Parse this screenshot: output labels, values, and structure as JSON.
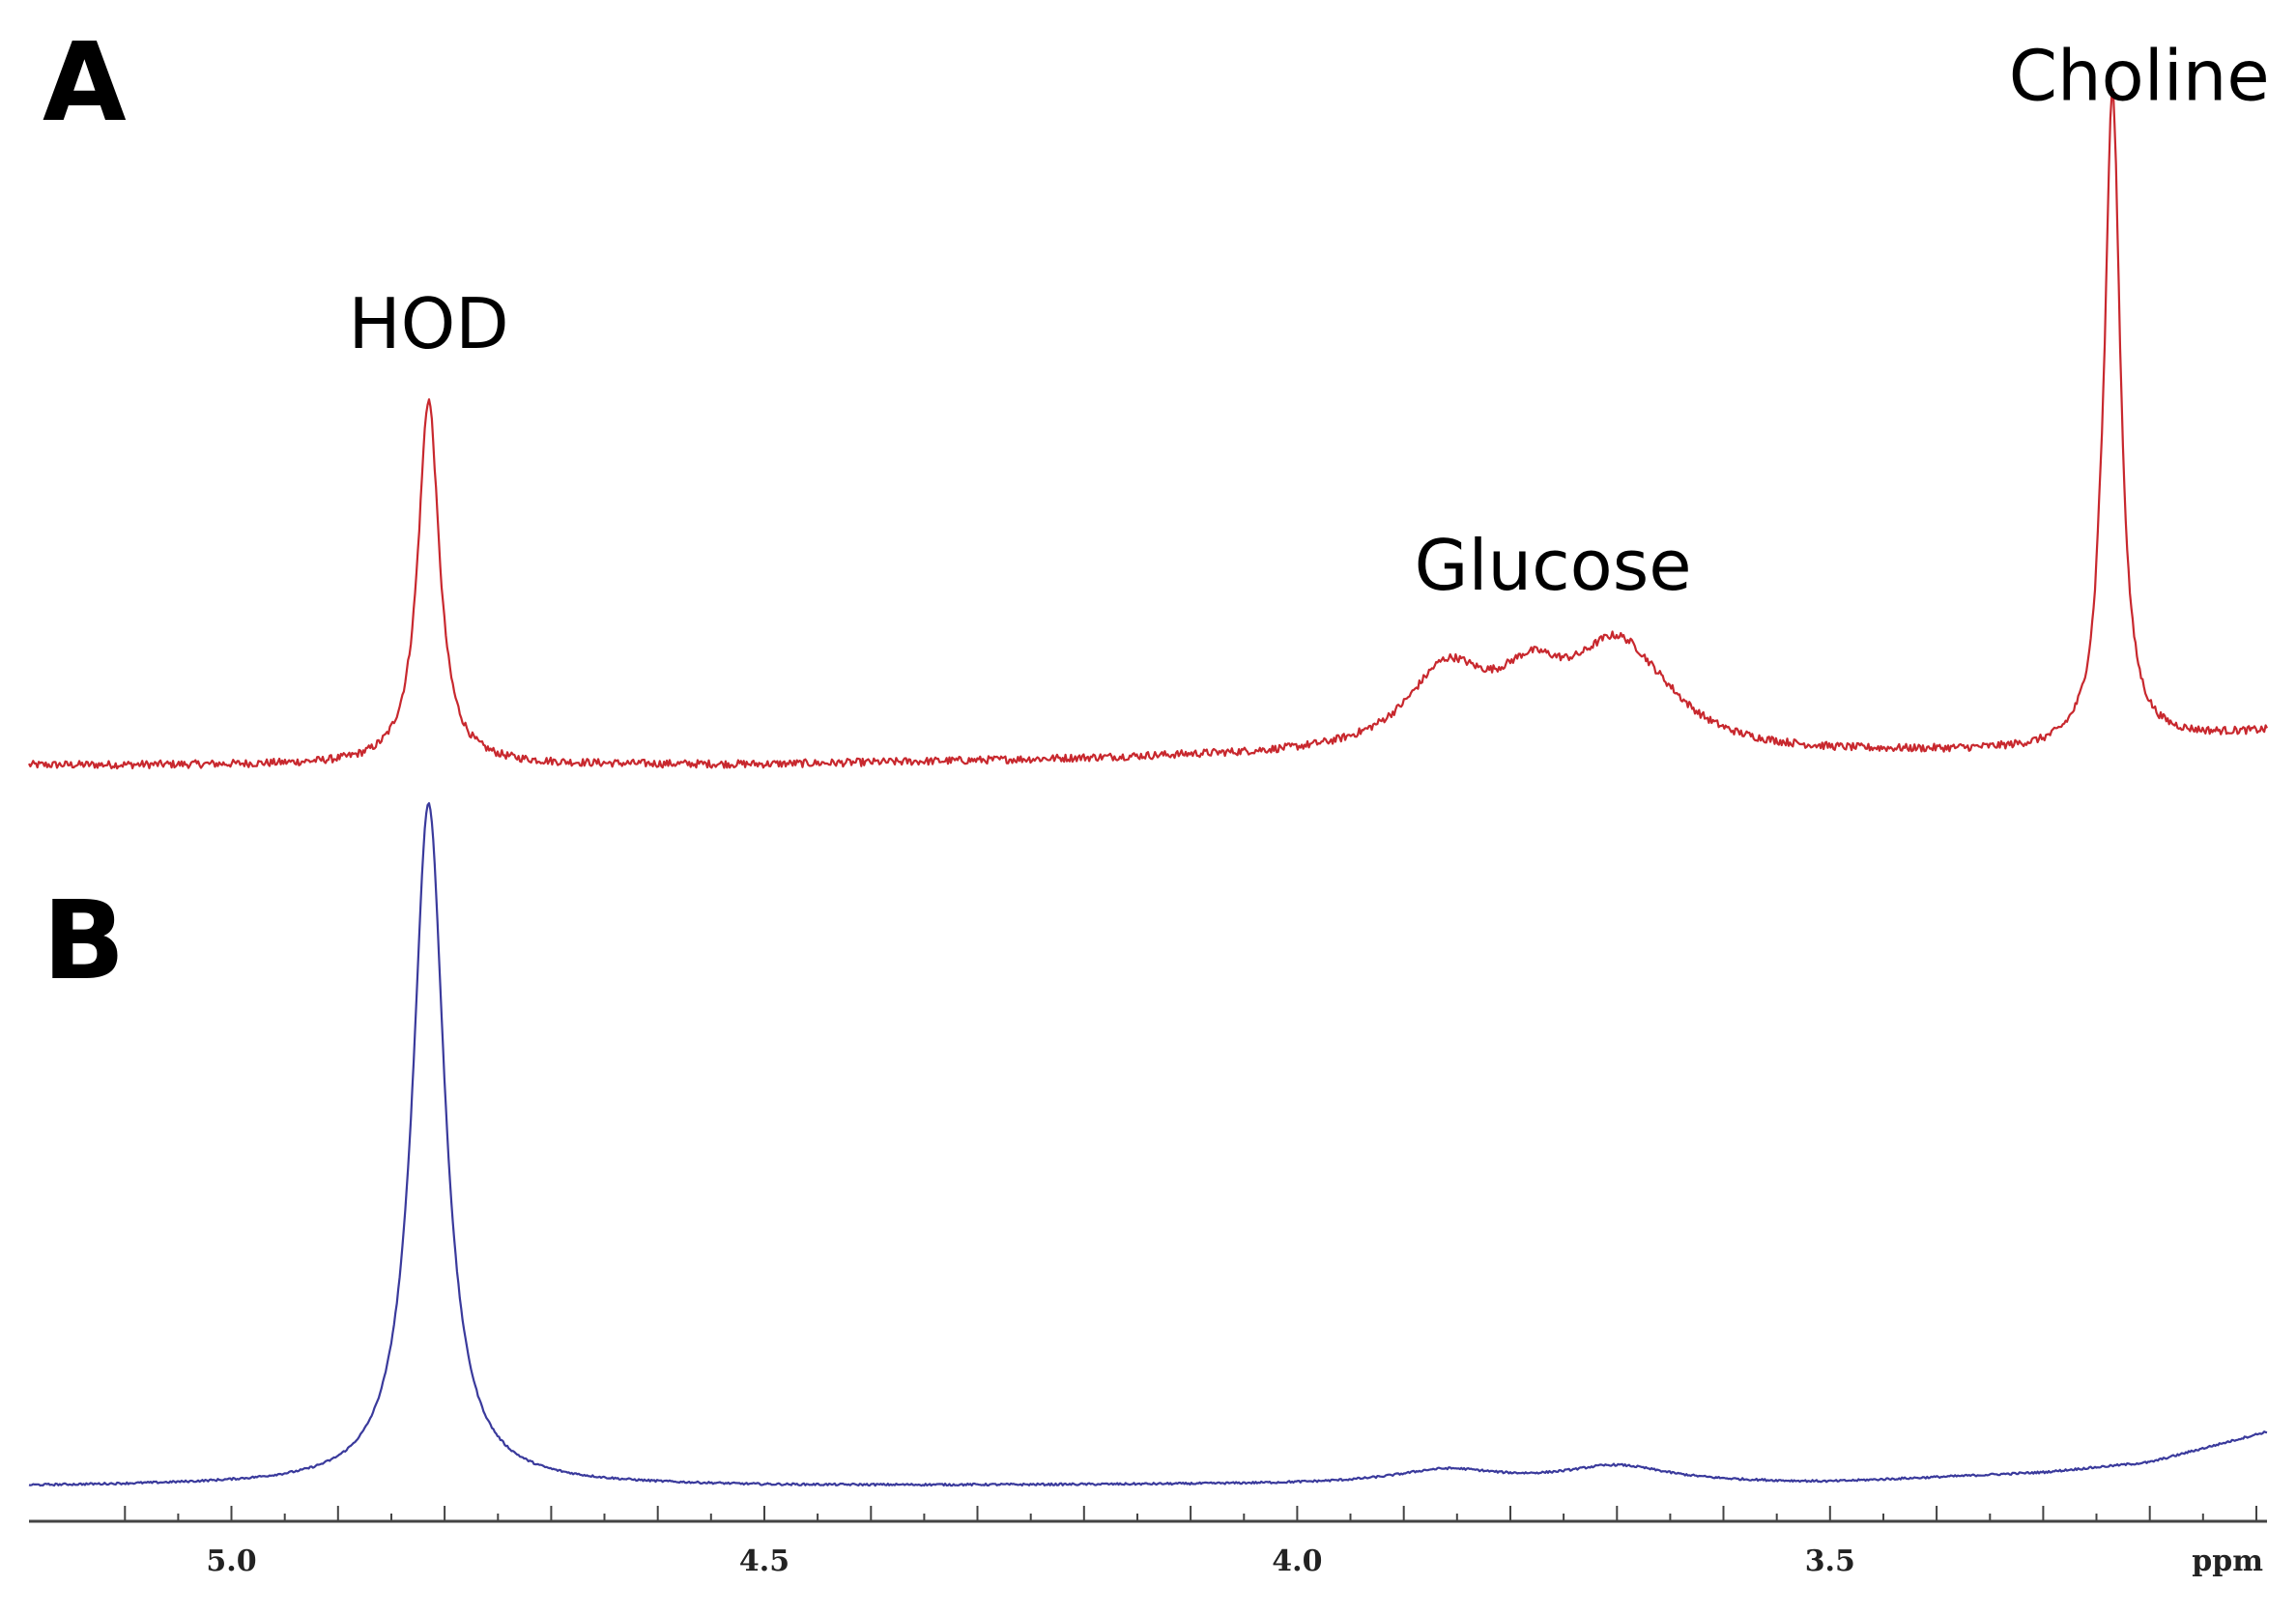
{
  "chart_data": {
    "type": "line",
    "xlabel": "ppm",
    "xlim": [
      5.19,
      3.09
    ],
    "x_reversed": true,
    "xticks": [
      5.0,
      4.5,
      4.0,
      3.5
    ],
    "xtick_labels": [
      "5.0",
      "4.5",
      "4.0",
      "3.5"
    ],
    "minor_tick_step": 0.1,
    "grid": false,
    "panels": [
      {
        "label": "A",
        "color": "#c8282e",
        "noise": 0.006,
        "baseline": [
          [
            5.19,
            0.0
          ],
          [
            4.5,
            0.0
          ],
          [
            4.1,
            0.01
          ],
          [
            3.5,
            0.015
          ],
          [
            3.3,
            0.02
          ],
          [
            3.09,
            0.05
          ]
        ],
        "peaks": [
          {
            "center": 4.815,
            "height": 0.56,
            "width": 0.012
          },
          {
            "center": 3.86,
            "height": 0.12,
            "width": 0.045
          },
          {
            "center": 3.78,
            "height": 0.09,
            "width": 0.04
          },
          {
            "center": 3.7,
            "height": 0.15,
            "width": 0.05
          },
          {
            "center": 3.656,
            "height": 0.02,
            "width": 0.04
          },
          {
            "center": 3.247,
            "height": 0.04,
            "width": 0.003
          },
          {
            "center": 3.235,
            "height": 1.0,
            "width": 0.009
          }
        ],
        "annotations": [
          {
            "text": "HOD",
            "x": 4.815,
            "y": 0.64
          },
          {
            "text": "Glucose",
            "x": 3.76,
            "y": 0.27
          },
          {
            "text": "Choline",
            "x": 3.21,
            "y": 1.02
          }
        ]
      },
      {
        "label": "B",
        "color": "#3a3a9c",
        "noise": 0.0015,
        "baseline": [
          [
            5.19,
            0.0
          ],
          [
            4.8,
            0.003
          ],
          [
            4.5,
            0.0
          ],
          [
            3.5,
            0.005
          ],
          [
            3.3,
            0.02
          ],
          [
            3.2,
            0.035
          ],
          [
            3.09,
            0.08
          ]
        ],
        "peaks": [
          {
            "center": 4.815,
            "height": 1.0,
            "width": 0.018
          },
          {
            "center": 3.86,
            "height": 0.02,
            "width": 0.06
          },
          {
            "center": 3.7,
            "height": 0.025,
            "width": 0.06
          }
        ],
        "annotations": []
      }
    ]
  }
}
